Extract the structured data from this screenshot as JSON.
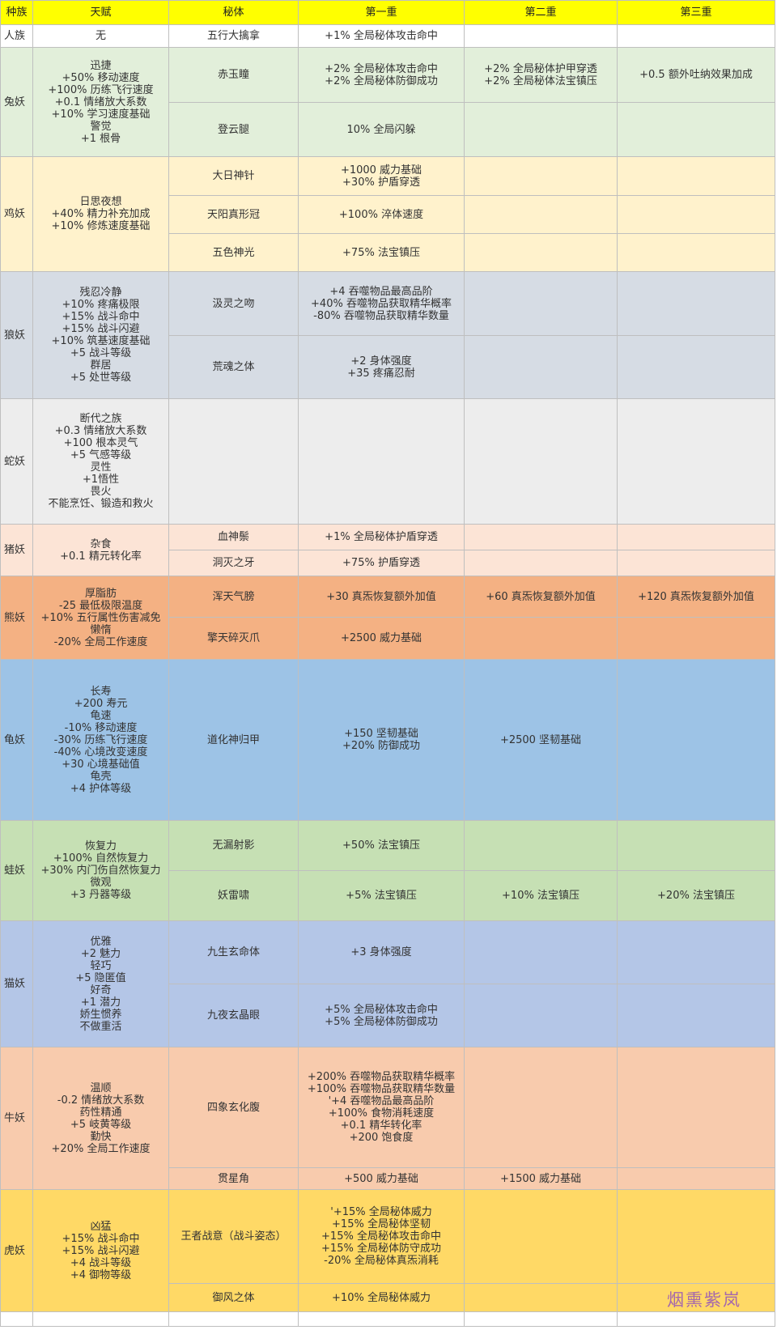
{
  "header": {
    "race": "种族",
    "talent": "天赋",
    "secret": "秘体",
    "tier1": "第一重",
    "tier2": "第二重",
    "tier3": "第三重"
  },
  "colors": {
    "header": "#ffff00",
    "human": "#ffffff",
    "rabbit": "#e2efda",
    "chicken": "#fff2cc",
    "wolf": "#d6dce4",
    "snake": "#ededed",
    "pig": "#fce4d6",
    "bear": "#f4b183",
    "turtle": "#9dc3e6",
    "frog": "#c6e0b4",
    "cat": "#b4c6e7",
    "cow": "#f8cbad",
    "tiger": "#ffd966"
  },
  "rows": {
    "human": {
      "race": "人族",
      "talent": [
        "无"
      ],
      "s1": {
        "name": "五行大擒拿",
        "t1": [
          "+1% 全局秘体攻击命中"
        ],
        "t2": [],
        "t3": []
      }
    },
    "rabbit": {
      "race": "兔妖",
      "talent": [
        "迅捷",
        "+50% 移动速度",
        "+100% 历练飞行速度",
        "+0.1 情绪放大系数",
        "+10% 学习速度基础",
        "警觉",
        "+1 根骨"
      ],
      "s1": {
        "name": "赤玉瞳",
        "t1": [
          "+2% 全局秘体攻击命中",
          "+2% 全局秘体防御成功"
        ],
        "t2": [
          "+2% 全局秘体护甲穿透",
          "+2% 全局秘体法宝镇压"
        ],
        "t3": [
          "+0.5 额外吐纳效果加成"
        ]
      },
      "s2": {
        "name": "登云腿",
        "t1": [
          "10% 全局闪躲"
        ],
        "t2": [],
        "t3": []
      }
    },
    "chicken": {
      "race": "鸡妖",
      "talent": [
        "日思夜想",
        "+40% 精力补充加成",
        "+10% 修炼速度基础"
      ],
      "s1": {
        "name": "大日神针",
        "t1": [
          "+1000 威力基础",
          "+30% 护盾穿透"
        ],
        "t2": [],
        "t3": []
      },
      "s2": {
        "name": "天阳真形冠",
        "t1": [
          "+100% 淬体速度"
        ],
        "t2": [],
        "t3": []
      },
      "s3": {
        "name": "五色神光",
        "t1": [
          "+75% 法宝镇压"
        ],
        "t2": [],
        "t3": []
      }
    },
    "wolf": {
      "race": "狼妖",
      "talent": [
        "残忍冷静",
        "+10% 疼痛极限",
        "+15% 战斗命中",
        "+15% 战斗闪避",
        "+10% 筑基速度基础",
        "+5 战斗等级",
        "群居",
        "+5 处世等级"
      ],
      "s1": {
        "name": "汲灵之吻",
        "t1": [
          "+4 吞噬物品最高品阶",
          "+40% 吞噬物品获取精华概率",
          "-80% 吞噬物品获取精华数量"
        ],
        "t2": [],
        "t3": []
      },
      "s2": {
        "name": "荒魂之体",
        "t1": [
          "+2 身体强度",
          "+35 疼痛忍耐"
        ],
        "t2": [],
        "t3": []
      }
    },
    "snake": {
      "race": "蛇妖",
      "talent": [
        "断代之族",
        "+0.3 情绪放大系数",
        "+100 根本灵气",
        "+5 气感等级",
        "灵性",
        "+1悟性",
        "畏火",
        "不能烹饪、锻造和救火"
      ],
      "s1": {
        "name": "",
        "t1": [],
        "t2": [],
        "t3": []
      }
    },
    "pig": {
      "race": "猪妖",
      "talent": [
        "杂食",
        "+0.1 精元转化率"
      ],
      "s1": {
        "name": "血神鬃",
        "t1": [
          "+1% 全局秘体护盾穿透"
        ],
        "t2": [],
        "t3": []
      },
      "s2": {
        "name": "洞灭之牙",
        "t1": [
          "+75% 护盾穿透"
        ],
        "t2": [],
        "t3": []
      }
    },
    "bear": {
      "race": "熊妖",
      "talent": [
        "厚脂肪",
        "-25 最低极限温度",
        "+10% 五行属性伤害减免",
        "懒惰",
        "-20% 全局工作速度"
      ],
      "s1": {
        "name": "浑天气膀",
        "t1": [
          "+30 真炁恢复额外加值"
        ],
        "t2": [
          "+60 真炁恢复额外加值"
        ],
        "t3": [
          "+120 真炁恢复额外加值"
        ]
      },
      "s2": {
        "name": "擎天碎灭爪",
        "t1": [
          "+2500 威力基础"
        ],
        "t2": [],
        "t3": []
      }
    },
    "turtle": {
      "race": "龟妖",
      "talent": [
        "长寿",
        "+200 寿元",
        "龟速",
        "-10% 移动速度",
        "-30% 历练飞行速度",
        "-40% 心境改变速度",
        "+30 心境基础值",
        "龟壳",
        "+4 护体等级"
      ],
      "s1": {
        "name": "道化神归甲",
        "t1": [
          "+150 坚韧基础",
          "+20% 防御成功"
        ],
        "t2": [
          "+2500 坚韧基础"
        ],
        "t3": []
      }
    },
    "frog": {
      "race": "蛙妖",
      "talent": [
        "恢复力",
        "+100% 自然恢复力",
        "+30% 内门伤自然恢复力",
        "微观",
        "+3 丹器等级"
      ],
      "s1": {
        "name": "无漏射影",
        "t1": [
          "+50% 法宝镇压"
        ],
        "t2": [],
        "t3": []
      },
      "s2": {
        "name": "妖雷啸",
        "t1": [
          "+5% 法宝镇压"
        ],
        "t2": [
          "+10% 法宝镇压"
        ],
        "t3": [
          "+20% 法宝镇压"
        ]
      }
    },
    "cat": {
      "race": "猫妖",
      "talent": [
        "优雅",
        "+2 魅力",
        "轻巧",
        "+5 隐匿值",
        "好奇",
        "+1 潜力",
        "娇生惯养",
        "不做重活"
      ],
      "s1": {
        "name": "九生玄命体",
        "t1": [
          "+3 身体强度"
        ],
        "t2": [],
        "t3": []
      },
      "s2": {
        "name": "九夜玄晶眼",
        "t1": [
          "+5% 全局秘体攻击命中",
          "+5% 全局秘体防御成功"
        ],
        "t2": [],
        "t3": []
      }
    },
    "cow": {
      "race": "牛妖",
      "talent": [
        "温顺",
        "-0.2 情绪放大系数",
        "药性精通",
        "+5 岐黄等级",
        "勤快",
        "+20% 全局工作速度"
      ],
      "s1": {
        "name": "四象玄化腹",
        "t1": [
          "+200% 吞噬物品获取精华概率",
          "+100% 吞噬物品获取精华数量",
          "'+4 吞噬物品最高品阶",
          "+100% 食物消耗速度",
          "+0.1 精华转化率",
          "+200 饱食度"
        ],
        "t2": [],
        "t3": []
      },
      "s2": {
        "name": "贯星角",
        "t1": [
          "+500 威力基础"
        ],
        "t2": [
          "+1500 威力基础"
        ],
        "t3": []
      }
    },
    "tiger": {
      "race": "虎妖",
      "talent": [
        "凶猛",
        "+15% 战斗命中",
        "+15% 战斗闪避",
        "+4 战斗等级",
        "+4 御物等级"
      ],
      "s1": {
        "name": "王者战意（战斗姿态）",
        "t1": [
          "'+15% 全局秘体威力",
          "+15% 全局秘体坚韧",
          "+15% 全局秘体攻击命中",
          "+15% 全局秘体防守成功",
          "-20% 全局秘体真炁消耗"
        ],
        "t2": [],
        "t3": []
      },
      "s2": {
        "name": "御风之体",
        "t1": [
          "+10% 全局秘体威力"
        ],
        "t2": [],
        "t3": []
      }
    }
  },
  "watermark": "烟熏紫岚"
}
